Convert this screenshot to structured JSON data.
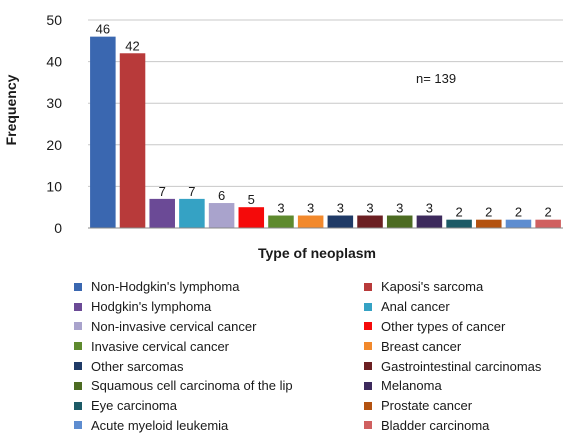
{
  "chart_data": {
    "type": "bar",
    "ylabel": "Frequency",
    "xlabel": "Type of neoplasm",
    "annotation": "n= 139",
    "ylim": [
      0,
      50
    ],
    "yticks": [
      0,
      10,
      20,
      30,
      40,
      50
    ],
    "grid": true,
    "legend_placement": "bottom",
    "series": [
      {
        "name": "Non-Hodgkin's lymphoma",
        "value": 46,
        "color": "#3a67b0"
      },
      {
        "name": "Kaposi's sarcoma",
        "value": 42,
        "color": "#b83a3a"
      },
      {
        "name": "Hodgkin's lymphoma",
        "value": 7,
        "color": "#6b4a96"
      },
      {
        "name": "Anal cancer",
        "value": 7,
        "color": "#35a2c4"
      },
      {
        "name": "Non-invasive cervical cancer",
        "value": 6,
        "color": "#a9a3cc"
      },
      {
        "name": "Other types of cancer",
        "value": 5,
        "color": "#f50a0a"
      },
      {
        "name": "Invasive cervical cancer",
        "value": 3,
        "color": "#5e8a2e"
      },
      {
        "name": "Breast cancer",
        "value": 3,
        "color": "#f2892c"
      },
      {
        "name": "Other sarcomas",
        "value": 3,
        "color": "#1f3a66"
      },
      {
        "name": "Gastrointestinal carcinomas",
        "value": 3,
        "color": "#6b1f22"
      },
      {
        "name": "Squamous cell carcinoma of the lip",
        "value": 3,
        "color": "#4c6b22"
      },
      {
        "name": "Melanoma",
        "value": 3,
        "color": "#3d2a5c"
      },
      {
        "name": "Eye carcinoma",
        "value": 2,
        "color": "#1c5a66"
      },
      {
        "name": "Prostate cancer",
        "value": 2,
        "color": "#b35210"
      },
      {
        "name": "Acute myeloid leukemia",
        "value": 2,
        "color": "#5e8dd0"
      },
      {
        "name": "Bladder carcinoma",
        "value": 2,
        "color": "#d06060"
      }
    ]
  }
}
